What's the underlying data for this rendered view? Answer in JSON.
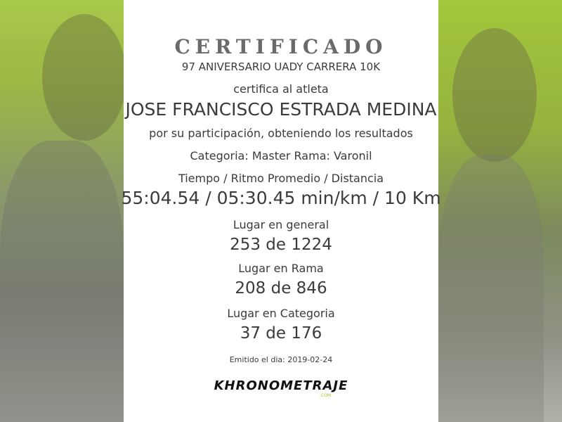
{
  "certificate": {
    "title": "CERTIFICADO",
    "event": "97 ANIVERSARIO UADY CARRERA 10K",
    "certifies_text": "certifica al atleta",
    "athlete_name": "JOSE FRANCISCO ESTRADA MEDINA",
    "participation_text": "por su participación, obteniendo los resultados",
    "category_line": "Categoria: Master Rama: Varonil",
    "metrics_label": "Tiempo / Ritmo Promedio / Distancia",
    "metrics_value": "55:04.54 / 05:30.45 min/km / 10 Km",
    "placements": [
      {
        "label": "Lugar en general",
        "value": "253 de 1224"
      },
      {
        "label": "Lugar en Rama",
        "value": "208 de 846"
      },
      {
        "label": "Lugar en Categoria",
        "value": "37 de 176"
      }
    ],
    "issued": "Emitido el dia: 2019-02-24"
  },
  "logo": {
    "text": "KHRONOMETRAJE",
    "suffix": ".COM",
    "accent_color": "#9bc21c"
  },
  "colors": {
    "side_green": "#a4c63c",
    "text": "#3b3b3b",
    "title": "#6a6a6a"
  }
}
